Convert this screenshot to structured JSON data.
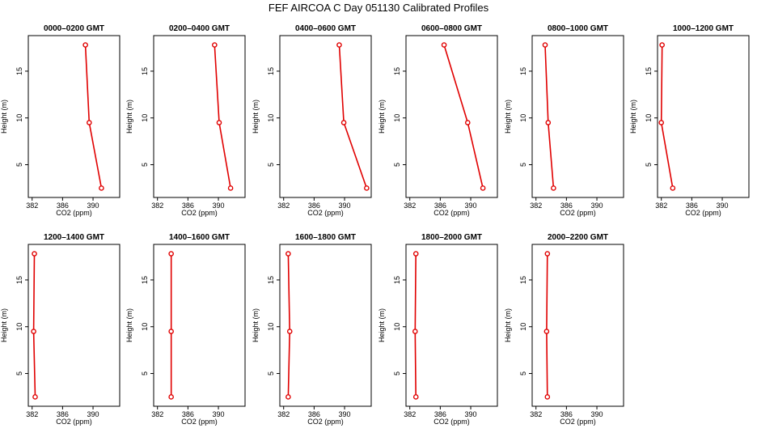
{
  "title": "FEF AIRCOA C  Day 051130  Calibrated Profiles",
  "chart_data": {
    "type": "line",
    "xlabel": "CO2 (ppm)",
    "ylabel": "Height (m)",
    "xlim": [
      381.5,
      393.5
    ],
    "ylim": [
      1.5,
      18.8
    ],
    "xticks": [
      382,
      386,
      390
    ],
    "yticks": [
      5,
      10,
      15
    ],
    "grid": false,
    "panels": [
      {
        "title": "0000–0200 GMT",
        "points": [
          {
            "x": 389.0,
            "y": 17.8
          },
          {
            "x": 389.5,
            "y": 9.5
          },
          {
            "x": 391.1,
            "y": 2.5
          }
        ]
      },
      {
        "title": "0200–0400 GMT",
        "points": [
          {
            "x": 389.5,
            "y": 17.8
          },
          {
            "x": 390.1,
            "y": 9.5
          },
          {
            "x": 391.6,
            "y": 2.5
          }
        ]
      },
      {
        "title": "0400–0600 GMT",
        "points": [
          {
            "x": 389.3,
            "y": 17.8
          },
          {
            "x": 389.9,
            "y": 9.5
          },
          {
            "x": 392.9,
            "y": 2.5
          }
        ]
      },
      {
        "title": "0600–0800 GMT",
        "points": [
          {
            "x": 386.5,
            "y": 17.8
          },
          {
            "x": 389.6,
            "y": 9.5
          },
          {
            "x": 391.6,
            "y": 2.5
          }
        ]
      },
      {
        "title": "0800–1000 GMT",
        "points": [
          {
            "x": 383.2,
            "y": 17.8
          },
          {
            "x": 383.6,
            "y": 9.5
          },
          {
            "x": 384.3,
            "y": 2.5
          }
        ]
      },
      {
        "title": "1000–1200 GMT",
        "points": [
          {
            "x": 382.1,
            "y": 17.8
          },
          {
            "x": 382.0,
            "y": 9.5
          },
          {
            "x": 383.5,
            "y": 2.5
          }
        ]
      },
      {
        "title": "1200–1400 GMT",
        "points": [
          {
            "x": 382.3,
            "y": 17.8
          },
          {
            "x": 382.2,
            "y": 9.5
          },
          {
            "x": 382.4,
            "y": 2.5
          }
        ]
      },
      {
        "title": "1400–1600 GMT",
        "points": [
          {
            "x": 383.8,
            "y": 17.8
          },
          {
            "x": 383.8,
            "y": 9.5
          },
          {
            "x": 383.8,
            "y": 2.5
          }
        ]
      },
      {
        "title": "1600–1800 GMT",
        "points": [
          {
            "x": 382.6,
            "y": 17.8
          },
          {
            "x": 382.8,
            "y": 9.5
          },
          {
            "x": 382.6,
            "y": 2.5
          }
        ]
      },
      {
        "title": "1800–2000 GMT",
        "points": [
          {
            "x": 382.8,
            "y": 17.8
          },
          {
            "x": 382.7,
            "y": 9.5
          },
          {
            "x": 382.8,
            "y": 2.5
          }
        ]
      },
      {
        "title": "2000–2200 GMT",
        "points": [
          {
            "x": 383.5,
            "y": 17.8
          },
          {
            "x": 383.4,
            "y": 9.5
          },
          {
            "x": 383.5,
            "y": 2.5
          }
        ]
      }
    ],
    "colors": {
      "series": "#e00000",
      "axes": "#000000"
    }
  }
}
